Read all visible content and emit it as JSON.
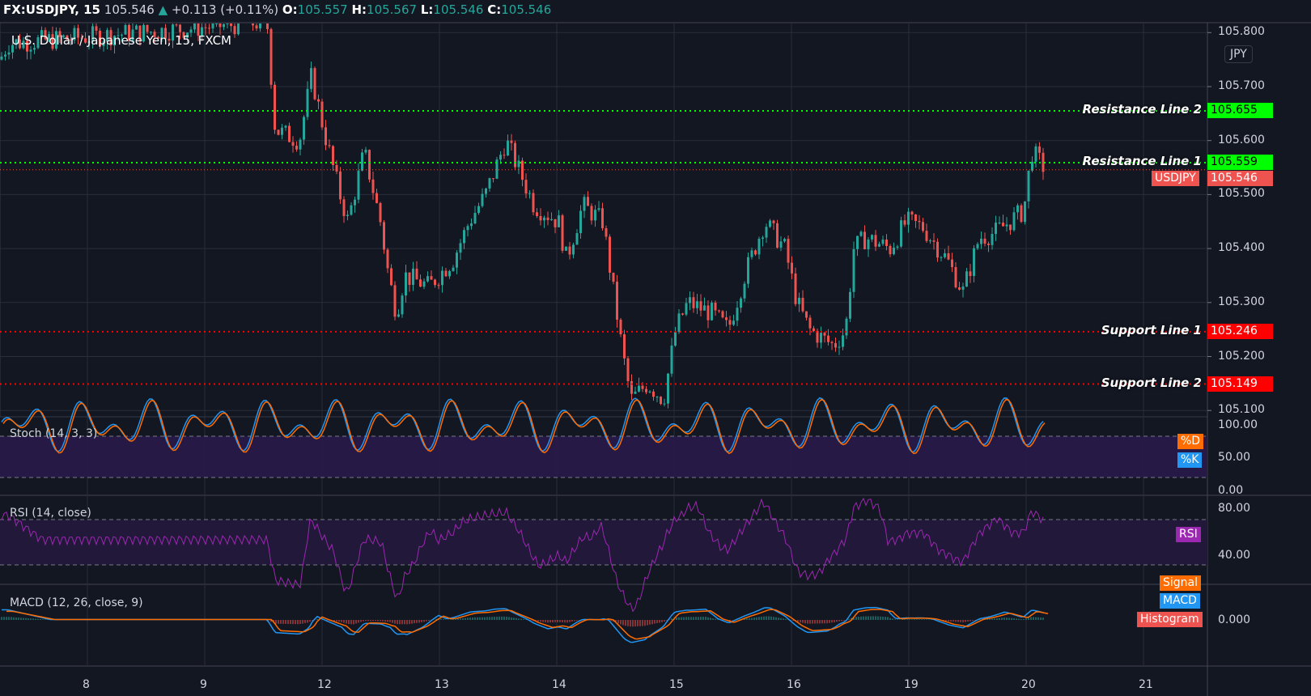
{
  "header": {
    "symbol": "FX:USDJPY, 15",
    "last": "105.546",
    "change": "+0.113 (+0.11%)",
    "o_label": "O:",
    "o": "105.557",
    "h_label": "H:",
    "h": "105.567",
    "l_label": "L:",
    "l": "105.546",
    "c_label": "C:",
    "c": "105.546"
  },
  "subtitle": "U.S. Dollar / Japanese Yen, 15, FXCM",
  "currency_button": "JPY",
  "colors": {
    "up": "#26a69a",
    "down": "#ef5350",
    "resistance": "#00ff00",
    "support": "#ff0000",
    "k": "#2196f3",
    "d": "#ff6d00",
    "rsi": "#9c27b0"
  },
  "chart_data": {
    "type": "candlestick",
    "x_ticks": [
      "8",
      "9",
      "12",
      "13",
      "14",
      "15",
      "16",
      "19",
      "20",
      "21"
    ],
    "y_ticks": [
      "105.800",
      "105.700",
      "105.600",
      "105.500",
      "105.400",
      "105.300",
      "105.200",
      "105.100"
    ],
    "ylim": [
      105.09,
      105.83
    ],
    "price_path": [
      [
        -0.745,
        105.75
      ],
      [
        -0.676,
        105.78
      ],
      [
        1.531,
        105.82
      ],
      [
        1.6,
        105.62
      ],
      [
        1.807,
        105.6
      ],
      [
        1.91,
        105.72
      ],
      [
        2.014,
        105.62
      ],
      [
        2.152,
        105.5
      ],
      [
        2.221,
        105.45
      ],
      [
        2.359,
        105.58
      ],
      [
        2.497,
        105.45
      ],
      [
        2.566,
        105.35
      ],
      [
        2.634,
        105.28
      ],
      [
        2.703,
        105.35
      ],
      [
        2.91,
        105.33
      ],
      [
        3.117,
        105.38
      ],
      [
        3.255,
        105.45
      ],
      [
        3.393,
        105.5
      ],
      [
        3.566,
        105.6
      ],
      [
        3.669,
        105.55
      ],
      [
        3.807,
        105.48
      ],
      [
        4.014,
        105.45
      ],
      [
        4.083,
        105.38
      ],
      [
        4.221,
        105.48
      ],
      [
        4.393,
        105.45
      ],
      [
        4.497,
        105.3
      ],
      [
        4.566,
        105.2
      ],
      [
        4.634,
        105.12
      ],
      [
        4.772,
        105.15
      ],
      [
        4.91,
        105.12
      ],
      [
        5.014,
        105.25
      ],
      [
        5.117,
        105.3
      ],
      [
        5.324,
        105.28
      ],
      [
        5.462,
        105.25
      ],
      [
        5.6,
        105.35
      ],
      [
        5.772,
        105.45
      ],
      [
        5.945,
        105.4
      ],
      [
        6.048,
        105.3
      ],
      [
        6.152,
        105.25
      ],
      [
        6.359,
        105.22
      ],
      [
        6.462,
        105.25
      ],
      [
        6.531,
        105.4
      ],
      [
        6.634,
        105.42
      ],
      [
        6.841,
        105.4
      ],
      [
        6.979,
        105.45
      ],
      [
        7.117,
        105.44
      ],
      [
        7.324,
        105.38
      ],
      [
        7.462,
        105.32
      ],
      [
        7.6,
        105.42
      ],
      [
        7.738,
        105.43
      ],
      [
        7.979,
        105.47
      ],
      [
        8.048,
        105.58
      ],
      [
        8.152,
        105.55
      ]
    ],
    "lines": [
      {
        "name": "Resistance Line 2",
        "value": "105.655",
        "kind": "resistance"
      },
      {
        "name": "Resistance Line 1",
        "value": "105.559",
        "kind": "resistance"
      },
      {
        "name": "Support Line 1",
        "value": "105.246",
        "kind": "support"
      },
      {
        "name": "Support Line 2",
        "value": "105.149",
        "kind": "support"
      }
    ],
    "last_price_tag": {
      "label": "USDJPY",
      "value": "105.546"
    }
  },
  "indicators": {
    "stoch": {
      "title": "Stoch (14, 3, 3)",
      "ticks": [
        "100.00",
        "50.00",
        "0.00"
      ],
      "d": "%D",
      "k": "%K"
    },
    "rsi": {
      "title": "RSI (14, close)",
      "ticks": [
        "80.00",
        "40.00"
      ],
      "label": "RSI"
    },
    "macd": {
      "title": "MACD (12, 26, close, 9)",
      "ticks": [
        "0.000"
      ],
      "signal": "Signal",
      "macd": "MACD",
      "hist": "Histogram"
    }
  }
}
